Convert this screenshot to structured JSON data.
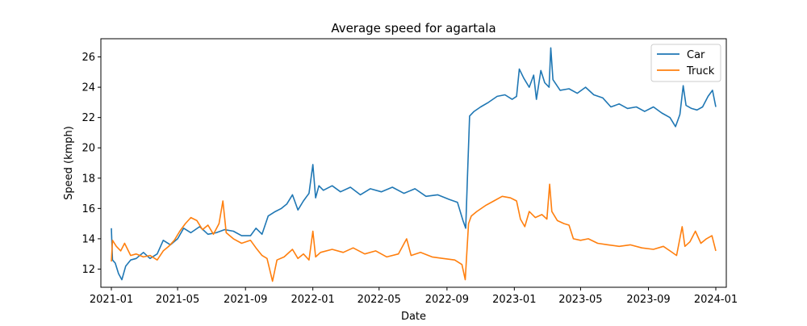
{
  "chart_data": {
    "type": "line",
    "title": "Average speed for agartala",
    "xlabel": "Date",
    "ylabel": "Speed (kmph)",
    "x_type": "date",
    "xlim": [
      "2020-12-13",
      "2024-01-20"
    ],
    "ylim": [
      10.8,
      27.2
    ],
    "x_ticks": [
      "2021-01",
      "2021-05",
      "2021-09",
      "2022-01",
      "2022-05",
      "2022-09",
      "2023-01",
      "2023-05",
      "2023-09",
      "2024-01"
    ],
    "y_ticks": [
      12,
      14,
      16,
      18,
      20,
      22,
      24,
      26
    ],
    "grid": false,
    "legend": {
      "position": "top-right",
      "entries": [
        "Car",
        "Truck"
      ]
    },
    "series": [
      {
        "name": "Car",
        "color": "#1f77b4",
        "points": [
          [
            "2021-01-01",
            14.7
          ],
          [
            "2021-01-03",
            12.6
          ],
          [
            "2021-01-08",
            12.4
          ],
          [
            "2021-01-14",
            11.7
          ],
          [
            "2021-01-20",
            11.3
          ],
          [
            "2021-01-27",
            12.2
          ],
          [
            "2021-02-05",
            12.6
          ],
          [
            "2021-02-15",
            12.7
          ],
          [
            "2021-02-28",
            13.1
          ],
          [
            "2021-03-12",
            12.7
          ],
          [
            "2021-03-25",
            13.0
          ],
          [
            "2021-04-05",
            13.9
          ],
          [
            "2021-04-18",
            13.6
          ],
          [
            "2021-05-01",
            14.0
          ],
          [
            "2021-05-12",
            14.7
          ],
          [
            "2021-05-25",
            14.4
          ],
          [
            "2021-06-10",
            14.8
          ],
          [
            "2021-06-25",
            14.3
          ],
          [
            "2021-07-10",
            14.4
          ],
          [
            "2021-07-25",
            14.6
          ],
          [
            "2021-08-10",
            14.5
          ],
          [
            "2021-08-25",
            14.2
          ],
          [
            "2021-09-10",
            14.2
          ],
          [
            "2021-09-20",
            14.7
          ],
          [
            "2021-10-01",
            14.3
          ],
          [
            "2021-10-12",
            15.5
          ],
          [
            "2021-10-25",
            15.8
          ],
          [
            "2021-11-05",
            16.0
          ],
          [
            "2021-11-15",
            16.3
          ],
          [
            "2021-11-25",
            16.9
          ],
          [
            "2021-12-05",
            15.9
          ],
          [
            "2021-12-15",
            16.5
          ],
          [
            "2021-12-25",
            17.0
          ],
          [
            "2022-01-01",
            18.9
          ],
          [
            "2022-01-06",
            16.7
          ],
          [
            "2022-01-12",
            17.5
          ],
          [
            "2022-01-20",
            17.2
          ],
          [
            "2022-02-05",
            17.5
          ],
          [
            "2022-02-20",
            17.1
          ],
          [
            "2022-03-10",
            17.4
          ],
          [
            "2022-03-28",
            16.9
          ],
          [
            "2022-04-15",
            17.3
          ],
          [
            "2022-05-05",
            17.1
          ],
          [
            "2022-05-25",
            17.4
          ],
          [
            "2022-06-15",
            17.0
          ],
          [
            "2022-07-05",
            17.3
          ],
          [
            "2022-07-25",
            16.8
          ],
          [
            "2022-08-15",
            16.9
          ],
          [
            "2022-09-05",
            16.6
          ],
          [
            "2022-09-20",
            16.4
          ],
          [
            "2022-09-30",
            15.2
          ],
          [
            "2022-10-05",
            14.7
          ],
          [
            "2022-10-08",
            18.0
          ],
          [
            "2022-10-12",
            22.1
          ],
          [
            "2022-10-20",
            22.4
          ],
          [
            "2022-11-01",
            22.7
          ],
          [
            "2022-11-15",
            23.0
          ],
          [
            "2022-12-01",
            23.4
          ],
          [
            "2022-12-15",
            23.5
          ],
          [
            "2022-12-28",
            23.2
          ],
          [
            "2023-01-05",
            23.4
          ],
          [
            "2023-01-10",
            25.2
          ],
          [
            "2023-01-18",
            24.6
          ],
          [
            "2023-01-28",
            24.0
          ],
          [
            "2023-02-05",
            24.8
          ],
          [
            "2023-02-10",
            23.2
          ],
          [
            "2023-02-18",
            25.1
          ],
          [
            "2023-02-25",
            24.3
          ],
          [
            "2023-03-05",
            24.0
          ],
          [
            "2023-03-08",
            26.6
          ],
          [
            "2023-03-12",
            24.5
          ],
          [
            "2023-03-25",
            23.8
          ],
          [
            "2023-04-10",
            23.9
          ],
          [
            "2023-04-25",
            23.6
          ],
          [
            "2023-05-10",
            24.0
          ],
          [
            "2023-05-25",
            23.5
          ],
          [
            "2023-06-10",
            23.3
          ],
          [
            "2023-06-25",
            22.7
          ],
          [
            "2023-07-10",
            22.9
          ],
          [
            "2023-07-25",
            22.6
          ],
          [
            "2023-08-10",
            22.7
          ],
          [
            "2023-08-25",
            22.4
          ],
          [
            "2023-09-10",
            22.7
          ],
          [
            "2023-09-25",
            22.3
          ],
          [
            "2023-10-10",
            22.0
          ],
          [
            "2023-10-20",
            21.4
          ],
          [
            "2023-10-28",
            22.2
          ],
          [
            "2023-11-03",
            24.1
          ],
          [
            "2023-11-08",
            22.8
          ],
          [
            "2023-11-18",
            22.6
          ],
          [
            "2023-11-28",
            22.5
          ],
          [
            "2023-12-08",
            22.7
          ],
          [
            "2023-12-18",
            23.4
          ],
          [
            "2023-12-26",
            23.8
          ],
          [
            "2024-01-01",
            22.7
          ]
        ]
      },
      {
        "name": "Truck",
        "color": "#ff7f0e",
        "points": [
          [
            "2021-01-01",
            12.5
          ],
          [
            "2021-01-03",
            13.9
          ],
          [
            "2021-01-10",
            13.5
          ],
          [
            "2021-01-18",
            13.2
          ],
          [
            "2021-01-25",
            13.7
          ],
          [
            "2021-02-05",
            12.9
          ],
          [
            "2021-02-15",
            13.0
          ],
          [
            "2021-02-28",
            12.8
          ],
          [
            "2021-03-12",
            12.9
          ],
          [
            "2021-03-25",
            12.6
          ],
          [
            "2021-04-05",
            13.2
          ],
          [
            "2021-04-15",
            13.5
          ],
          [
            "2021-04-25",
            13.9
          ],
          [
            "2021-05-05",
            14.5
          ],
          [
            "2021-05-15",
            15.0
          ],
          [
            "2021-05-25",
            15.4
          ],
          [
            "2021-06-05",
            15.2
          ],
          [
            "2021-06-15",
            14.6
          ],
          [
            "2021-06-25",
            14.9
          ],
          [
            "2021-07-05",
            14.3
          ],
          [
            "2021-07-15",
            15.0
          ],
          [
            "2021-07-22",
            16.5
          ],
          [
            "2021-07-28",
            14.4
          ],
          [
            "2021-08-10",
            14.0
          ],
          [
            "2021-08-25",
            13.7
          ],
          [
            "2021-09-10",
            13.9
          ],
          [
            "2021-09-20",
            13.4
          ],
          [
            "2021-10-01",
            12.9
          ],
          [
            "2021-10-10",
            12.7
          ],
          [
            "2021-10-20",
            11.2
          ],
          [
            "2021-10-28",
            12.6
          ],
          [
            "2021-11-10",
            12.8
          ],
          [
            "2021-11-25",
            13.3
          ],
          [
            "2021-12-05",
            12.7
          ],
          [
            "2021-12-15",
            13.0
          ],
          [
            "2021-12-25",
            12.6
          ],
          [
            "2022-01-01",
            14.5
          ],
          [
            "2022-01-06",
            12.8
          ],
          [
            "2022-01-15",
            13.1
          ],
          [
            "2022-02-05",
            13.3
          ],
          [
            "2022-02-25",
            13.1
          ],
          [
            "2022-03-15",
            13.4
          ],
          [
            "2022-04-05",
            13.0
          ],
          [
            "2022-04-25",
            13.2
          ],
          [
            "2022-05-15",
            12.8
          ],
          [
            "2022-06-05",
            13.0
          ],
          [
            "2022-06-20",
            14.0
          ],
          [
            "2022-06-28",
            12.9
          ],
          [
            "2022-07-15",
            13.1
          ],
          [
            "2022-08-05",
            12.8
          ],
          [
            "2022-08-25",
            12.7
          ],
          [
            "2022-09-15",
            12.6
          ],
          [
            "2022-09-28",
            12.3
          ],
          [
            "2022-10-04",
            11.3
          ],
          [
            "2022-10-10",
            15.0
          ],
          [
            "2022-10-15",
            15.5
          ],
          [
            "2022-10-25",
            15.8
          ],
          [
            "2022-11-10",
            16.2
          ],
          [
            "2022-11-25",
            16.5
          ],
          [
            "2022-12-10",
            16.8
          ],
          [
            "2022-12-25",
            16.7
          ],
          [
            "2023-01-05",
            16.5
          ],
          [
            "2023-01-12",
            15.3
          ],
          [
            "2023-01-20",
            14.8
          ],
          [
            "2023-01-28",
            15.8
          ],
          [
            "2023-02-08",
            15.4
          ],
          [
            "2023-02-20",
            15.6
          ],
          [
            "2023-03-01",
            15.3
          ],
          [
            "2023-03-06",
            17.6
          ],
          [
            "2023-03-10",
            15.8
          ],
          [
            "2023-03-20",
            15.2
          ],
          [
            "2023-04-01",
            15.0
          ],
          [
            "2023-04-10",
            14.9
          ],
          [
            "2023-04-18",
            14.0
          ],
          [
            "2023-05-01",
            13.9
          ],
          [
            "2023-05-15",
            14.0
          ],
          [
            "2023-06-01",
            13.7
          ],
          [
            "2023-06-20",
            13.6
          ],
          [
            "2023-07-10",
            13.5
          ],
          [
            "2023-07-30",
            13.6
          ],
          [
            "2023-08-20",
            13.4
          ],
          [
            "2023-09-10",
            13.3
          ],
          [
            "2023-09-28",
            13.5
          ],
          [
            "2023-10-10",
            13.2
          ],
          [
            "2023-10-22",
            12.9
          ],
          [
            "2023-11-01",
            14.8
          ],
          [
            "2023-11-06",
            13.5
          ],
          [
            "2023-11-15",
            13.8
          ],
          [
            "2023-11-25",
            14.5
          ],
          [
            "2023-12-05",
            13.7
          ],
          [
            "2023-12-15",
            14.0
          ],
          [
            "2023-12-25",
            14.2
          ],
          [
            "2024-01-01",
            13.2
          ]
        ]
      }
    ]
  }
}
